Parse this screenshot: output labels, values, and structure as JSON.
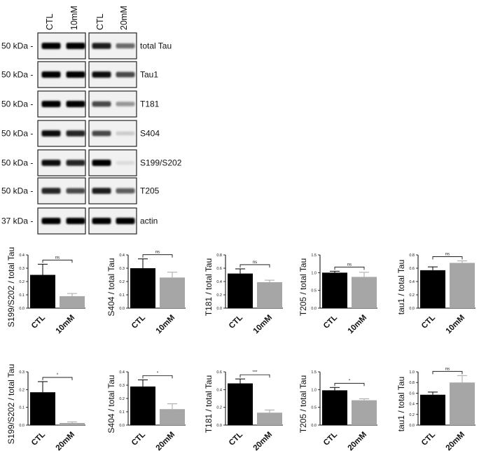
{
  "blot": {
    "lanes": [
      {
        "label": "CTL"
      },
      {
        "label": "10mM"
      },
      {
        "label": "CTL"
      },
      {
        "label": "20mM"
      }
    ],
    "rows": [
      {
        "marker": "50 kDa",
        "name": "total Tau",
        "intensity": [
          1.0,
          1.0,
          0.9,
          0.55
        ]
      },
      {
        "marker": "50 kDa",
        "name": "Tau1",
        "intensity": [
          1.0,
          1.0,
          0.95,
          0.7
        ]
      },
      {
        "marker": "50 kDa",
        "name": "T181",
        "intensity": [
          1.0,
          1.0,
          0.7,
          0.35
        ]
      },
      {
        "marker": "50 kDa",
        "name": "S404",
        "intensity": [
          0.95,
          0.85,
          0.7,
          0.12
        ]
      },
      {
        "marker": "50 kDa",
        "name": "S199/S202",
        "intensity": [
          0.95,
          0.85,
          1.0,
          0.05
        ]
      },
      {
        "marker": "50 kDa",
        "name": "T205",
        "intensity": [
          0.85,
          0.7,
          0.9,
          0.6
        ]
      },
      {
        "marker": "37 kDa",
        "name": "actin",
        "intensity": [
          1.0,
          1.0,
          1.0,
          1.0
        ]
      }
    ]
  },
  "chart_data": [
    {
      "type": "bar",
      "ylabel": "S199/S202 / total Tau",
      "categories": [
        "CTL",
        "10mM"
      ],
      "values": [
        0.25,
        0.09
      ],
      "errors": [
        0.08,
        0.02
      ],
      "ylim": [
        0,
        0.4
      ],
      "yticks": [
        "0.0",
        "0.1",
        "0.2",
        "0.3",
        "0.4"
      ],
      "significance": "ns",
      "colors": [
        "#000000",
        "#a6a6a6"
      ]
    },
    {
      "type": "bar",
      "ylabel": "S404 / total Tau",
      "categories": [
        "CTL",
        "10mM"
      ],
      "values": [
        0.3,
        0.23
      ],
      "errors": [
        0.07,
        0.04
      ],
      "ylim": [
        0,
        0.4
      ],
      "yticks": [
        "0.0",
        "0.1",
        "0.2",
        "0.3",
        "0.4"
      ],
      "significance": "ns",
      "colors": [
        "#000000",
        "#a6a6a6"
      ]
    },
    {
      "type": "bar",
      "ylabel": "T181 / total Tau",
      "categories": [
        "CTL",
        "10mM"
      ],
      "values": [
        0.52,
        0.39
      ],
      "errors": [
        0.07,
        0.03
      ],
      "ylim": [
        0,
        0.8
      ],
      "yticks": [
        "0.0",
        "0.2",
        "0.4",
        "0.6",
        "0.8"
      ],
      "significance": "ns",
      "colors": [
        "#000000",
        "#a6a6a6"
      ]
    },
    {
      "type": "bar",
      "ylabel": "T205 / total Tau",
      "categories": [
        "CTL",
        "10mM"
      ],
      "values": [
        1.0,
        0.88
      ],
      "errors": [
        0.04,
        0.13
      ],
      "ylim": [
        0,
        1.5
      ],
      "yticks": [
        "0.0",
        "0.5",
        "1.0",
        "1.5"
      ],
      "significance": "ns",
      "colors": [
        "#000000",
        "#a6a6a6"
      ]
    },
    {
      "type": "bar",
      "ylabel": "tau1 / total Tau",
      "categories": [
        "CTL",
        "10mM"
      ],
      "values": [
        0.57,
        0.68
      ],
      "errors": [
        0.05,
        0.03
      ],
      "ylim": [
        0,
        0.8
      ],
      "yticks": [
        "0.0",
        "0.2",
        "0.4",
        "0.6",
        "0.8"
      ],
      "significance": "ns",
      "colors": [
        "#000000",
        "#a6a6a6"
      ]
    },
    {
      "type": "bar",
      "ylabel": "S199/S202 / total Tau",
      "categories": [
        "CTL",
        "20mM"
      ],
      "values": [
        0.185,
        0.012
      ],
      "errors": [
        0.06,
        0.006
      ],
      "ylim": [
        0,
        0.3
      ],
      "yticks": [
        "0.0",
        "0.1",
        "0.2",
        "0.3"
      ],
      "significance": "*",
      "colors": [
        "#000000",
        "#a6a6a6"
      ]
    },
    {
      "type": "bar",
      "ylabel": "S404 / total Tau",
      "categories": [
        "CTL",
        "20mM"
      ],
      "values": [
        0.29,
        0.12
      ],
      "errors": [
        0.05,
        0.04
      ],
      "ylim": [
        0,
        0.4
      ],
      "yticks": [
        "0.0",
        "0.1",
        "0.2",
        "0.3",
        "0.4"
      ],
      "significance": "*",
      "colors": [
        "#000000",
        "#a6a6a6"
      ]
    },
    {
      "type": "bar",
      "ylabel": "T181 / total Tau",
      "categories": [
        "CTL",
        "20mM"
      ],
      "values": [
        0.47,
        0.14
      ],
      "errors": [
        0.05,
        0.03
      ],
      "ylim": [
        0,
        0.6
      ],
      "yticks": [
        "0.0",
        "0.2",
        "0.4",
        "0.6"
      ],
      "significance": "***",
      "colors": [
        "#000000",
        "#a6a6a6"
      ]
    },
    {
      "type": "bar",
      "ylabel": "T205 / total Tau",
      "categories": [
        "CTL",
        "20mM"
      ],
      "values": [
        0.98,
        0.7
      ],
      "errors": [
        0.08,
        0.04
      ],
      "ylim": [
        0,
        1.5
      ],
      "yticks": [
        "0.0",
        "0.5",
        "1.0",
        "1.5"
      ],
      "significance": "*",
      "colors": [
        "#000000",
        "#a6a6a6"
      ]
    },
    {
      "type": "bar",
      "ylabel": "tau1 / total Tau",
      "categories": [
        "CTL",
        "20mM"
      ],
      "values": [
        0.57,
        0.8
      ],
      "errors": [
        0.05,
        0.13
      ],
      "ylim": [
        0,
        1.0
      ],
      "yticks": [
        "0.0",
        "0.2",
        "0.4",
        "0.6",
        "0.8",
        "1.0"
      ],
      "significance": "ns",
      "colors": [
        "#000000",
        "#a6a6a6"
      ]
    }
  ]
}
